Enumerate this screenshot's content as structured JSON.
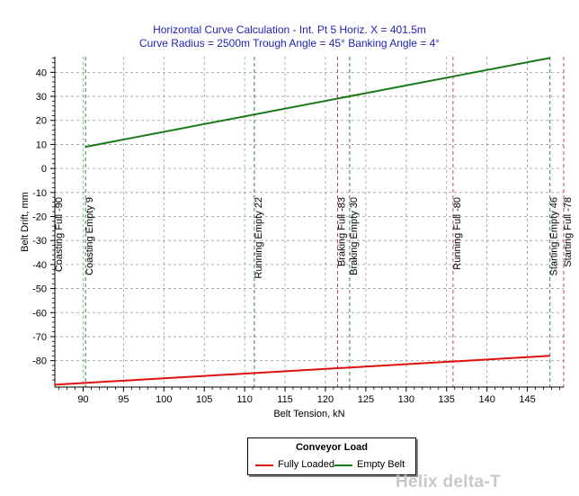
{
  "chart_data": {
    "type": "line",
    "title": "Horizontal Curve Calculation - Int. Pt 5 Horiz. X = 401.5m",
    "subtitle": "Curve Radius = 2500m Trough Angle = 45° Banking Angle = 4°",
    "xlabel": "Belt Tension, kN",
    "ylabel": "Belt Drift, mm",
    "xlim": [
      86.5,
      149.5
    ],
    "ylim": [
      -91,
      46.5
    ],
    "x_ticks": [
      90,
      95,
      100,
      105,
      110,
      115,
      120,
      125,
      130,
      135,
      140,
      145
    ],
    "y_ticks": [
      40,
      30,
      20,
      10,
      0,
      -10,
      -20,
      -30,
      -40,
      -50,
      -60,
      -70,
      -80
    ],
    "grid": true,
    "legend_title": "Conveyor Load",
    "legend_position": "bottom-center",
    "series": [
      {
        "name": "Fully Loaded",
        "color": "#e01010",
        "x": [
          86.5,
          147.8
        ],
        "y": [
          -90,
          -78
        ]
      },
      {
        "name": "Empty Belt",
        "color": "#1a7a1a",
        "x": [
          90.3,
          147.8
        ],
        "y": [
          9,
          46
        ]
      }
    ],
    "markers": [
      {
        "label": "Coasting Full -90",
        "x": 86.5,
        "color": "#c0283c"
      },
      {
        "label": "Coasting Empty 9",
        "x": 90.3,
        "color": "#1a7a1a"
      },
      {
        "label": "Running Empty 22",
        "x": 111.2,
        "color": "#1a7a1a"
      },
      {
        "label": "Braking Full -83",
        "x": 121.5,
        "color": "#c0283c"
      },
      {
        "label": "Braking Empty 30",
        "x": 123.0,
        "color": "#1a7a1a"
      },
      {
        "label": "Running Full -80",
        "x": 135.8,
        "color": "#c0283c"
      },
      {
        "label": "Starting Empty 46",
        "x": 147.8,
        "color": "#1a7a1a"
      },
      {
        "label": "Starting Full -78",
        "x": 149.5,
        "color": "#c0283c"
      }
    ]
  },
  "watermark": "Helix delta-T"
}
